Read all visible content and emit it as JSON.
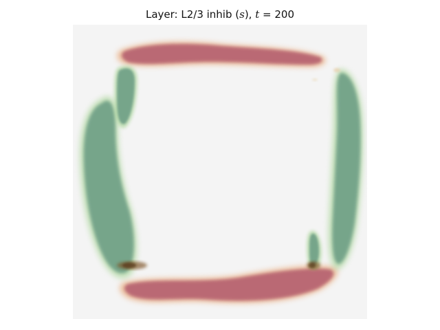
{
  "figure": {
    "title_prefix": "Layer: L2/3 inhib (",
    "title_var": "s",
    "title_mid": "), ",
    "title_time_var": "t",
    "title_time_eq": " = 200",
    "background_color": "#f4f4f4",
    "colors": {
      "red_band": "#b5606f",
      "green_band": "#6e9f86",
      "edge_orange": "#e08a4a",
      "edge_green": "#9ed08a",
      "dark_spot": "#5a3a1c"
    }
  }
}
